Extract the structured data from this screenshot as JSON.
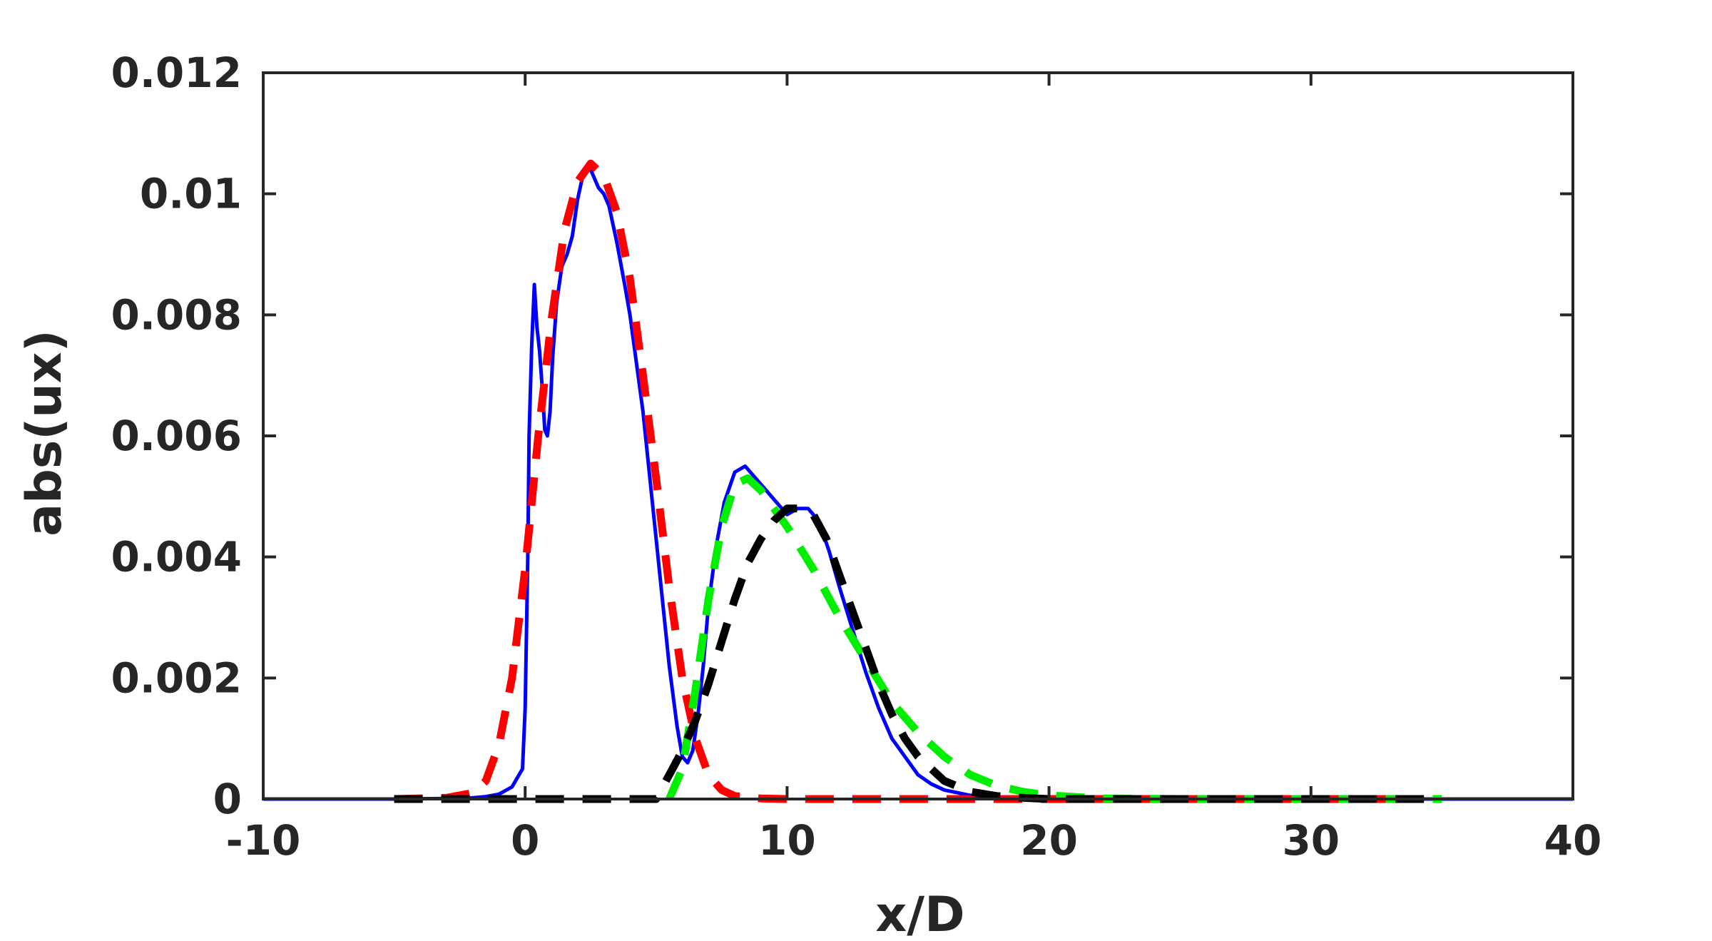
{
  "chart_data": {
    "type": "line",
    "title": "",
    "xlabel": "x/D",
    "ylabel": "abs(ux)",
    "xlim": [
      -10,
      40
    ],
    "ylim": [
      0,
      0.012
    ],
    "xticks": [
      -10,
      0,
      10,
      20,
      30,
      40
    ],
    "xtick_labels": [
      "-10",
      "0",
      "10",
      "20",
      "30",
      "40"
    ],
    "yticks": [
      0,
      0.002,
      0.004,
      0.006,
      0.008,
      0.01,
      0.012
    ],
    "ytick_labels": [
      "0",
      "0.002",
      "0.004",
      "0.006",
      "0.008",
      "0.01",
      "0.012"
    ],
    "grid": false,
    "legend": "none",
    "series": [
      {
        "color": "#0000ff",
        "style": "solid",
        "x": [
          -10,
          -5,
          -3,
          -2,
          -1.5,
          -1,
          -0.5,
          -0.1,
          0,
          0.1,
          0.15,
          0.25,
          0.35,
          0.45,
          0.5,
          0.55,
          0.65,
          0.75,
          0.85,
          0.95,
          1.05,
          1.2,
          1.4,
          1.6,
          1.8,
          2.0,
          2.2,
          2.4,
          2.6,
          2.8,
          3.0,
          3.2,
          3.5,
          3.8,
          4.0,
          4.5,
          5.0,
          5.5,
          5.8,
          6.0,
          6.2,
          6.4,
          6.6,
          6.8,
          7.0,
          7.3,
          7.6,
          8.0,
          8.4,
          8.8,
          9.2,
          9.6,
          10.0,
          10.4,
          10.8,
          11.2,
          11.6,
          12.0,
          12.5,
          13.0,
          13.5,
          14.0,
          14.5,
          15.0,
          15.5,
          16.0,
          17.0,
          18.0,
          19.0,
          20.0,
          22.0,
          25.0,
          30.0,
          35.0,
          40.0
        ],
        "y": [
          0,
          0,
          1e-05,
          2e-05,
          4e-05,
          8e-05,
          0.0002,
          0.0005,
          0.0015,
          0.004,
          0.006,
          0.0075,
          0.0085,
          0.0078,
          0.0076,
          0.0074,
          0.0068,
          0.0061,
          0.006,
          0.0064,
          0.0073,
          0.0082,
          0.0088,
          0.009,
          0.0093,
          0.0099,
          0.0103,
          0.0105,
          0.0103,
          0.0101,
          0.01,
          0.0098,
          0.0092,
          0.0085,
          0.008,
          0.0064,
          0.0043,
          0.0022,
          0.0012,
          0.0007,
          0.0006,
          0.0008,
          0.0014,
          0.0022,
          0.0032,
          0.0042,
          0.0049,
          0.0054,
          0.0055,
          0.0053,
          0.0051,
          0.0049,
          0.0047,
          0.0048,
          0.0048,
          0.0046,
          0.0041,
          0.0035,
          0.0028,
          0.0021,
          0.0015,
          0.001,
          0.0007,
          0.0004,
          0.00025,
          0.00015,
          6e-05,
          2e-05,
          1e-05,
          0,
          0,
          0,
          0,
          0,
          0
        ]
      },
      {
        "color": "#ff0000",
        "style": "dashed",
        "x": [
          -5,
          -3,
          -2,
          -1.5,
          -1,
          -0.5,
          0,
          0.5,
          1.0,
          1.5,
          2.0,
          2.5,
          3.0,
          3.5,
          4.0,
          4.5,
          5.0,
          5.5,
          6.0,
          6.5,
          7.0,
          7.5,
          8.0,
          9.0,
          10.0,
          12.0,
          15.0,
          20.0,
          25.0,
          30.0,
          34.0
        ],
        "y": [
          0,
          2e-05,
          0.0001,
          0.0003,
          0.0009,
          0.002,
          0.0038,
          0.006,
          0.0079,
          0.0094,
          0.0102,
          0.0105,
          0.0103,
          0.0097,
          0.0086,
          0.007,
          0.0053,
          0.0035,
          0.002,
          0.001,
          0.0004,
          0.00015,
          5e-05,
          1e-05,
          0,
          0,
          0,
          0,
          0,
          0,
          0
        ]
      },
      {
        "color": "#00ee00",
        "style": "dashed",
        "x": [
          5.5,
          6.0,
          6.5,
          7.0,
          7.5,
          8.0,
          8.5,
          9.0,
          9.5,
          10.0,
          11.0,
          12.0,
          13.0,
          14.0,
          15.0,
          16.0,
          17.0,
          18.0,
          19.0,
          20.0,
          22.0,
          25.0,
          30.0,
          35.0
        ],
        "y": [
          0,
          0.0005,
          0.0018,
          0.0033,
          0.0045,
          0.0052,
          0.0053,
          0.0051,
          0.0048,
          0.0045,
          0.0038,
          0.003,
          0.0023,
          0.0016,
          0.0011,
          0.0007,
          0.0004,
          0.00022,
          0.00012,
          6e-05,
          1e-05,
          0,
          0,
          0
        ]
      },
      {
        "color": "#000000",
        "style": "dashed",
        "x": [
          -5,
          0,
          5.0,
          5.5,
          6.0,
          6.5,
          7.0,
          7.5,
          8.0,
          8.5,
          9.0,
          9.5,
          10.0,
          10.5,
          11.0,
          11.5,
          12.0,
          12.5,
          13.0,
          13.5,
          14.0,
          14.5,
          15.0,
          16.0,
          17.0,
          18.0,
          19.0,
          20.0,
          22.0,
          25.0,
          30.0,
          35.0
        ],
        "y": [
          0,
          0,
          0,
          0.0004,
          0.0008,
          0.0013,
          0.0019,
          0.0026,
          0.0033,
          0.0039,
          0.0043,
          0.0046,
          0.0048,
          0.0048,
          0.0047,
          0.0043,
          0.0037,
          0.0031,
          0.0025,
          0.0019,
          0.0014,
          0.001,
          0.0007,
          0.0003,
          0.00012,
          5e-05,
          2e-05,
          0,
          0,
          0,
          0,
          0
        ]
      }
    ]
  }
}
